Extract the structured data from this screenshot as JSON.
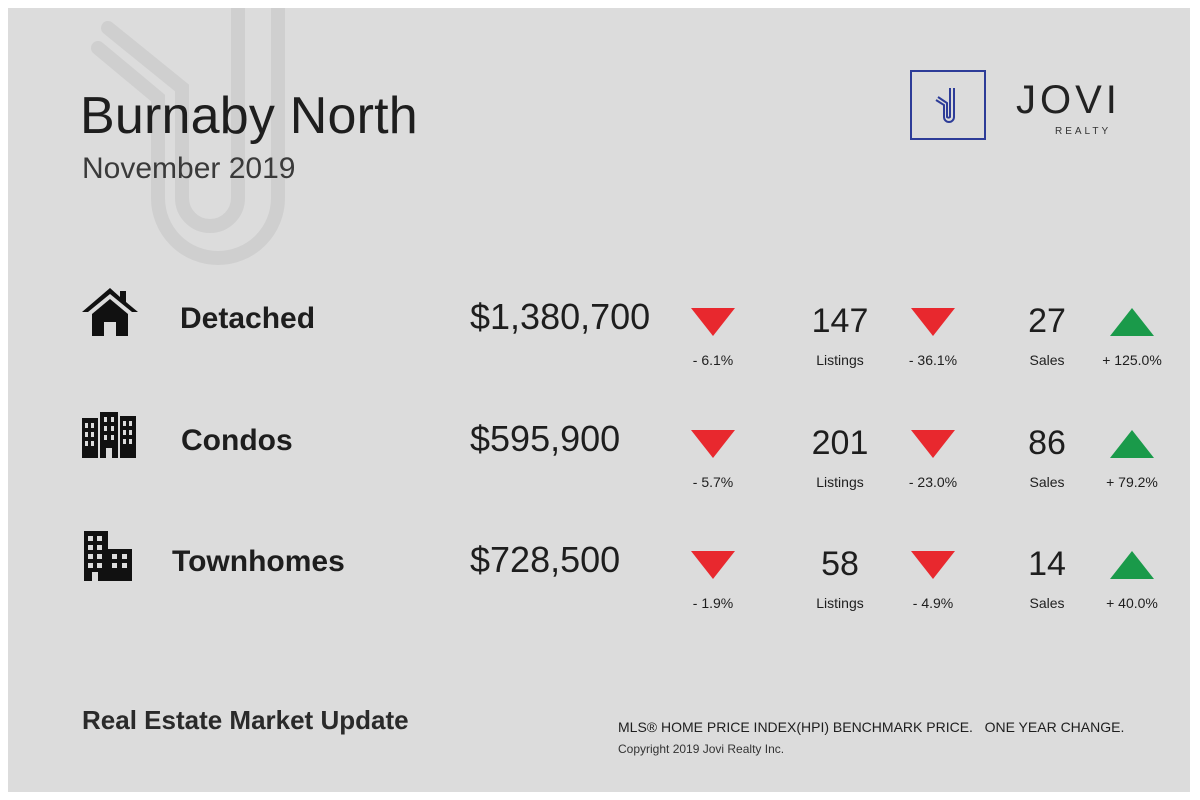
{
  "header": {
    "title": "Burnaby North",
    "subtitle": "November 2019"
  },
  "brand": {
    "name": "JOVI",
    "tagline": "REALTY",
    "color": "#2d3c98"
  },
  "colors": {
    "down": "#e8282e",
    "up": "#1a9a4a",
    "background": "#dcdcdc"
  },
  "rows": [
    {
      "icon": "house-icon",
      "type": "Detached",
      "price": "$1,380,700",
      "price_trend": "down",
      "price_change": "- 6.1%",
      "listings": "147",
      "listings_label": "Listings",
      "listings_trend": "down",
      "listings_change": "- 36.1%",
      "sales": "27",
      "sales_label": "Sales",
      "sales_trend": "up",
      "sales_change": "+ 125.0%"
    },
    {
      "icon": "condo-building-icon",
      "type": "Condos",
      "price": "$595,900",
      "price_trend": "down",
      "price_change": "- 5.7%",
      "listings": "201",
      "listings_label": "Listings",
      "listings_trend": "down",
      "listings_change": "- 23.0%",
      "sales": "86",
      "sales_label": "Sales",
      "sales_trend": "up",
      "sales_change": "+ 79.2%"
    },
    {
      "icon": "townhome-building-icon",
      "type": "Townhomes",
      "price": "$728,500",
      "price_trend": "down",
      "price_change": "- 1.9%",
      "listings": "58",
      "listings_label": "Listings",
      "listings_trend": "down",
      "listings_change": "- 4.9%",
      "sales": "14",
      "sales_label": "Sales",
      "sales_trend": "up",
      "sales_change": "+ 40.0%"
    }
  ],
  "footer": {
    "title": "Real Estate Market Update",
    "note": "MLS® HOME PRICE INDEX(HPI) BENCHMARK PRICE.   ONE YEAR CHANGE.",
    "copyright": "Copyright 2019 Jovi Realty Inc."
  }
}
